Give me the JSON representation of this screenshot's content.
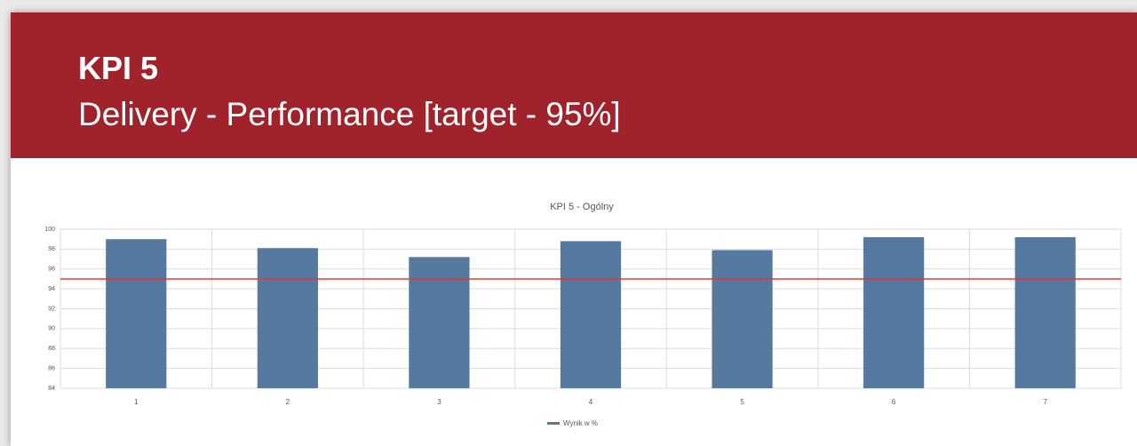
{
  "header": {
    "title": "KPI 5",
    "subtitle": "Delivery - Performance [target - 95%]"
  },
  "chart_data": {
    "type": "bar",
    "title": "KPI 5 - Ogólny",
    "categories": [
      "1",
      "2",
      "3",
      "4",
      "5",
      "6",
      "7"
    ],
    "series": [
      {
        "name": "Wynik w %",
        "color": "#56799f",
        "values": [
          99.0,
          98.1,
          97.2,
          98.8,
          97.9,
          99.2,
          99.2
        ]
      }
    ],
    "target": 95,
    "target_color": "#e53935",
    "ylim": [
      84,
      100
    ],
    "yticks": [
      84,
      86,
      88,
      90,
      92,
      94,
      96,
      98,
      100
    ],
    "grid": true
  }
}
